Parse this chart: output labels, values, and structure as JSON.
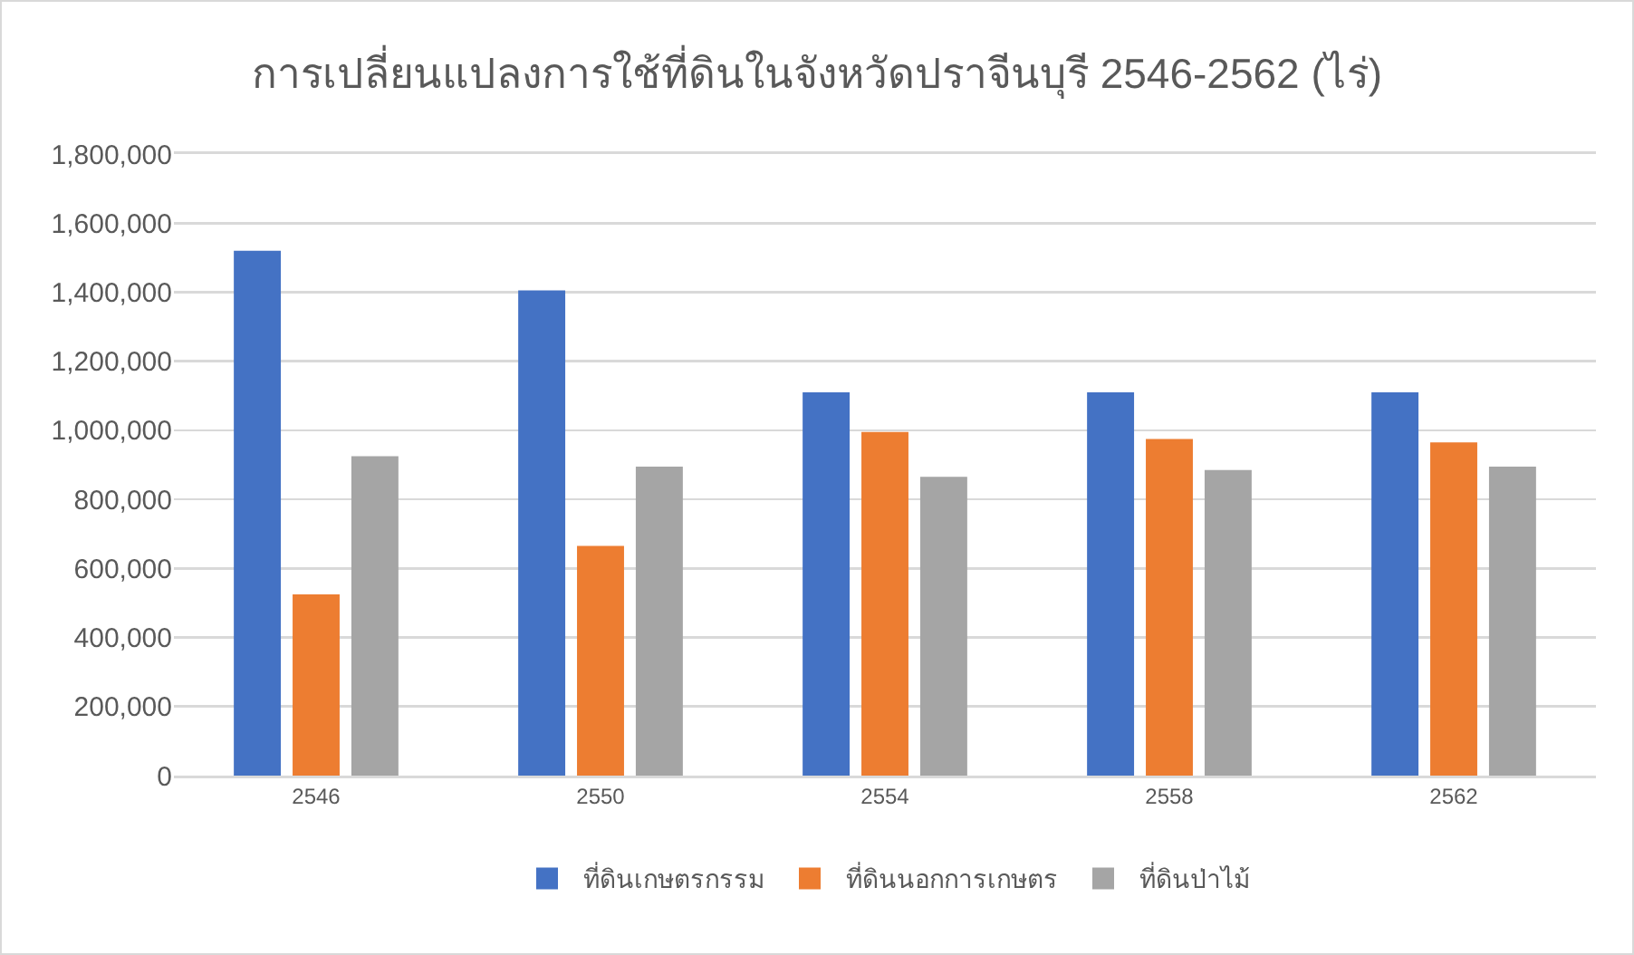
{
  "chart_data": {
    "type": "bar",
    "title": "การเปลี่ยนแปลงการใช้ที่ดินในจังหวัดปราจีนบุรี 2546-2562 (ไร่)",
    "categories": [
      "2546",
      "2550",
      "2554",
      "2558",
      "2562"
    ],
    "series": [
      {
        "name": "ที่ดินเกษตรกรรม",
        "color": "#4472c4",
        "values": [
          1520000,
          1405000,
          1110000,
          1110000,
          1110000
        ]
      },
      {
        "name": "ที่ดินนอกการเกษตร",
        "color": "#ed7d31",
        "values": [
          525000,
          665000,
          995000,
          975000,
          965000
        ]
      },
      {
        "name": "ที่ดินป่าไม้",
        "color": "#a5a5a5",
        "values": [
          925000,
          895000,
          865000,
          885000,
          895000
        ]
      }
    ],
    "ylim": [
      0,
      1800000
    ],
    "yticks": [
      0,
      {
        "value": 200000,
        "label": "200,000"
      },
      {
        "value": 400000,
        "label": "400,000"
      },
      {
        "value": 600000,
        "label": "600,000"
      },
      {
        "value": 800000,
        "label": "800,000"
      },
      {
        "value": 1000000,
        "label": "1,000,000"
      },
      {
        "value": 1200000,
        "label": "1,200,000"
      },
      {
        "value": 1400000,
        "label": "1,400,000"
      },
      {
        "value": 1600000,
        "label": "1,600,000"
      },
      {
        "value": 1800000,
        "label": "1,800,000"
      }
    ],
    "grid": "y",
    "legend": "bottom"
  }
}
